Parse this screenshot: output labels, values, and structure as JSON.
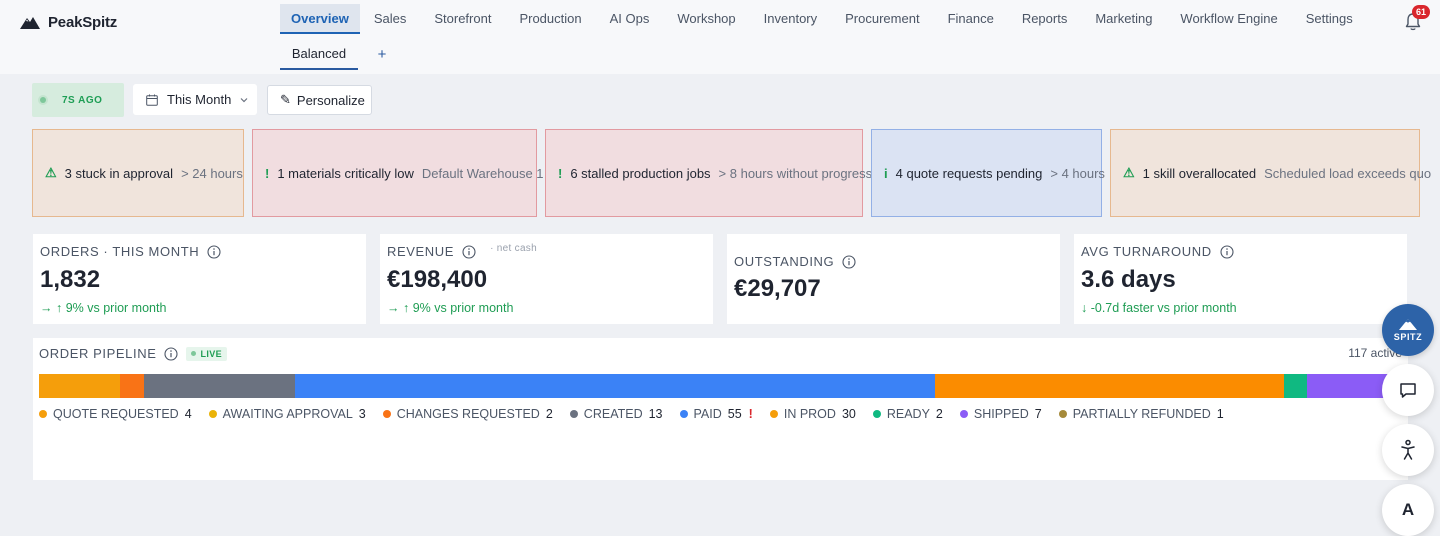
{
  "app": {
    "name": "PeakSpitz",
    "logo_icon": "mountain-icon"
  },
  "nav": {
    "items": [
      {
        "label": "Overview",
        "active": true
      },
      {
        "label": "Sales"
      },
      {
        "label": "Storefront"
      },
      {
        "label": "Production"
      },
      {
        "label": "AI Ops"
      },
      {
        "label": "Workshop"
      },
      {
        "label": "Inventory"
      },
      {
        "label": "Procurement"
      },
      {
        "label": "Finance"
      },
      {
        "label": "Reports"
      },
      {
        "label": "Marketing"
      },
      {
        "label": "Workflow Engine"
      },
      {
        "label": "Settings"
      }
    ],
    "subtabs": [
      {
        "label": "Balanced",
        "active": true
      }
    ],
    "add_tab_label": "+",
    "notifications_count": "61"
  },
  "controls": {
    "refresh_status": "7S AGO",
    "date_range": "This Month",
    "personalize_label": "Personalize",
    "personalize_icon": "✎"
  },
  "alerts": [
    {
      "icon": "⚠",
      "message": "3 stuck in approval",
      "detail": "> 24 hours",
      "tone": "amber"
    },
    {
      "icon": "!",
      "message": "1 materials critically low",
      "detail": "Default Warehouse 1",
      "tone": "red"
    },
    {
      "icon": "!",
      "message": "6 stalled production jobs",
      "detail": "> 8 hours without progress",
      "tone": "red"
    },
    {
      "icon": "i",
      "message": "4 quote requests pending",
      "detail": "> 4 hours",
      "tone": "blue"
    },
    {
      "icon": "⚠",
      "message": "1 skill overallocated",
      "detail": "Scheduled load exceeds quo",
      "tone": "amber"
    }
  ],
  "kpis": [
    {
      "label": "ORDERS · THIS MONTH",
      "value": "1,832",
      "delta": "→ ↑ 9% vs prior month",
      "note": ""
    },
    {
      "label": "REVENUE",
      "value": "€198,400",
      "delta": "→ ↑ 9% vs prior month",
      "note": "· net cash"
    },
    {
      "label": "OUTSTANDING",
      "value": "€29,707",
      "delta": "",
      "note": ""
    },
    {
      "label": "AVG TURNAROUND",
      "value": "3.6 days",
      "delta": "↓ -0.7d faster vs prior month",
      "note": ""
    }
  ],
  "pipeline": {
    "title": "ORDER PIPELINE",
    "live_label": "LIVE",
    "active_label": "117 active",
    "stages": [
      {
        "name": "QUOTE REQUESTED",
        "count": 4,
        "color": "#f59e0b",
        "bar_color": "#f59e0b",
        "warn": ""
      },
      {
        "name": "AWAITING APPROVAL",
        "count": 3,
        "color": "#eab308",
        "bar_color": "#f59e0b",
        "warn": ""
      },
      {
        "name": "CHANGES REQUESTED",
        "count": 2,
        "color": "#f97316",
        "bar_color": "#f97316",
        "warn": ""
      },
      {
        "name": "CREATED",
        "count": 13,
        "color": "#6b7280",
        "bar_color": "#6b7280",
        "warn": ""
      },
      {
        "name": "PAID",
        "count": 55,
        "color": "#3b82f6",
        "bar_color": "#3b82f6",
        "warn": "!"
      },
      {
        "name": "IN PROD",
        "count": 30,
        "color": "#f59e0b",
        "bar_color": "#fb8c00",
        "warn": ""
      },
      {
        "name": "READY",
        "count": 2,
        "color": "#10b981",
        "bar_color": "#10b981",
        "warn": ""
      },
      {
        "name": "SHIPPED",
        "count": 7,
        "color": "#8b5cf6",
        "bar_color": "#8b5cf6",
        "warn": ""
      },
      {
        "name": "PARTIALLY REFUNDED",
        "count": 1,
        "color": "#a58a3a",
        "bar_color": "#a58a3a",
        "warn": ""
      }
    ]
  },
  "floating": {
    "assistant_label": "SPITZ",
    "chat_icon": "chat-bubble-icon",
    "accessibility_icon": "accessibility-person-icon",
    "font_button_label": "A"
  }
}
